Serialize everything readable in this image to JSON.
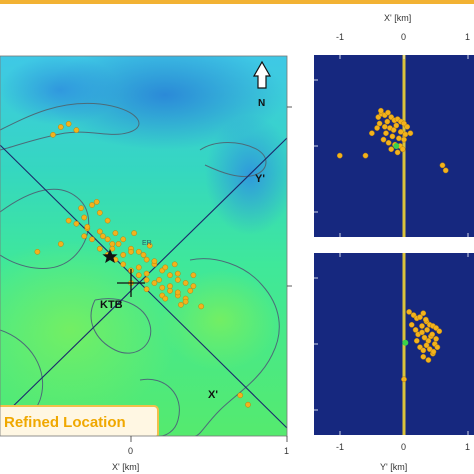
{
  "page": {
    "top_strip_color": "#f2b233"
  },
  "colors": {
    "event": "#f3b21c",
    "event_edge": "#b5800e",
    "section_bg": "#16287f",
    "section_line": "#d9c33c",
    "profile_line": "#1a2a6c",
    "contour": "#4c6b78",
    "callout_bg": "#fff7e3",
    "callout_border": "#f1c04a",
    "callout_text": "#f0a800",
    "special_event": "#3bd14a"
  },
  "map": {
    "north_label": "N",
    "north_icon": "north-arrow-icon",
    "site_label": "KTB",
    "site_icon": "crosshair-icon",
    "star_icon": "star-icon",
    "axis_y_label": "Y'",
    "axis_x_label": "X'",
    "annotation_small": "ER",
    "callout": "Refined Location",
    "xlabel": "X' [km]",
    "x_ticks": [
      "0",
      "1"
    ]
  },
  "section_top": {
    "xlabel": "X' [km]",
    "x_ticks": [
      "-1",
      "0",
      "1"
    ]
  },
  "section_bottom": {
    "xlabel": "Y' [km]",
    "x_ticks": [
      "-1",
      "0",
      "1"
    ]
  },
  "chart_data": [
    {
      "type": "scatter",
      "title": "",
      "xlabel": "X' [km]",
      "xlim": [
        -1,
        1
      ],
      "ylim": [
        -1,
        1.3
      ],
      "series": [
        {
          "x": [
            -0.25,
            -0.2,
            -0.3,
            -0.35,
            -0.32,
            -0.22,
            -0.28,
            -0.15,
            -0.1,
            -0.18,
            -0.12,
            -0.05,
            0.0,
            0.05,
            0.1,
            0.15,
            0.2,
            0.25,
            0.3,
            0.35,
            0.4,
            -0.3,
            -0.25,
            -0.2,
            -0.15,
            -0.1,
            -0.05,
            0.0,
            0.05,
            0.1,
            0.15,
            0.2,
            0.25,
            0.3,
            0.35,
            0.38,
            0.3,
            0.22,
            0.15,
            0.08,
            0.0,
            -0.08,
            -0.15,
            -0.2,
            -0.28,
            -0.4,
            -0.45,
            0.02,
            0.12,
            0.28,
            0.4,
            0.05,
            0.1,
            0.18,
            0.25,
            -0.05,
            0.35,
            0.3,
            0.2,
            0.1,
            0.0,
            -0.12,
            0.45,
            0.32,
            0.22,
            0.7,
            0.75,
            -0.6,
            -0.45,
            -0.4,
            -0.35,
            -0.5
          ],
          "y": [
            0.5,
            0.45,
            0.42,
            0.38,
            0.48,
            0.52,
            0.35,
            0.4,
            0.32,
            0.3,
            0.25,
            0.28,
            0.22,
            0.2,
            0.15,
            0.12,
            0.08,
            0.05,
            0.02,
            0.0,
            -0.02,
            0.3,
            0.28,
            0.22,
            0.18,
            0.15,
            0.12,
            0.08,
            0.05,
            0.02,
            0.0,
            -0.03,
            -0.05,
            -0.08,
            -0.1,
            -0.05,
            0.06,
            0.1,
            0.14,
            0.18,
            0.2,
            0.25,
            0.28,
            0.33,
            0.36,
            0.4,
            0.25,
            0.32,
            0.24,
            0.12,
            0.05,
            0.1,
            0.06,
            0.02,
            -0.02,
            0.18,
            -0.12,
            -0.06,
            -0.08,
            -0.04,
            0.0,
            0.22,
            -0.15,
            -0.14,
            -0.1,
            -0.72,
            -0.78,
            0.2,
            1.0,
            1.02,
            0.98,
            0.95
          ]
        }
      ],
      "markers": [
        {
          "label": "KTB",
          "x": 0.0,
          "y": 0.0
        },
        {
          "label": "star",
          "x": -0.15,
          "y": 0.08
        }
      ]
    },
    {
      "type": "scatter",
      "title": "",
      "xlabel": "X' [km]",
      "xlim": [
        -1.2,
        1.2
      ],
      "ylim": [
        -1.2,
        1.2
      ],
      "series": [
        {
          "x": [
            -0.4,
            -0.35,
            -0.3,
            -0.25,
            -0.2,
            -0.15,
            -0.1,
            -0.05,
            0.0,
            0.05,
            -0.38,
            -0.3,
            -0.22,
            -0.12,
            -0.05,
            0.02,
            -0.28,
            -0.18,
            -0.08,
            0.0,
            -0.32,
            -0.24,
            -0.14,
            -0.06,
            -0.02,
            -0.2,
            -0.1,
            -0.16,
            -0.26,
            -0.42,
            -0.36,
            -0.5,
            0.1,
            -1.0,
            0.6,
            0.65,
            -0.6
          ],
          "y": [
            0.45,
            0.5,
            0.48,
            0.52,
            0.45,
            0.4,
            0.42,
            0.38,
            0.35,
            0.3,
            0.35,
            0.3,
            0.28,
            0.32,
            0.22,
            0.18,
            0.2,
            0.15,
            0.12,
            0.1,
            0.1,
            0.05,
            0.02,
            0.0,
            -0.05,
            -0.05,
            -0.1,
            0.25,
            0.38,
            0.28,
            0.55,
            0.2,
            0.2,
            -0.15,
            -0.3,
            -0.38,
            -0.15
          ]
        }
      ],
      "special_points": [
        {
          "x": -0.12,
          "y": 0.0
        }
      ]
    },
    {
      "type": "scatter",
      "title": "",
      "xlabel": "Y' [km]",
      "xlim": [
        -1.2,
        1.2
      ],
      "ylim": [
        -1.2,
        1.2
      ],
      "series": [
        {
          "x": [
            0.08,
            0.15,
            0.2,
            0.25,
            0.3,
            0.35,
            0.4,
            0.45,
            0.5,
            0.55,
            0.12,
            0.18,
            0.22,
            0.28,
            0.32,
            0.38,
            0.42,
            0.48,
            0.25,
            0.3,
            0.35,
            0.4,
            0.45,
            0.2,
            0.28,
            0.36,
            0.44,
            0.52,
            0.3,
            0.38,
            0.46,
            0.34,
            0.5,
            0.0
          ],
          "y": [
            0.5,
            0.45,
            0.4,
            0.42,
            0.48,
            0.35,
            0.3,
            0.28,
            0.25,
            0.2,
            0.3,
            0.22,
            0.15,
            0.18,
            0.1,
            0.05,
            0.12,
            0.0,
            -0.05,
            -0.1,
            -0.02,
            -0.08,
            -0.15,
            0.05,
            0.28,
            0.22,
            0.15,
            -0.05,
            -0.2,
            -0.25,
            -0.12,
            0.38,
            0.08,
            -0.55
          ]
        }
      ],
      "special_points": [
        {
          "x": 0.02,
          "y": 0.02
        }
      ]
    }
  ]
}
